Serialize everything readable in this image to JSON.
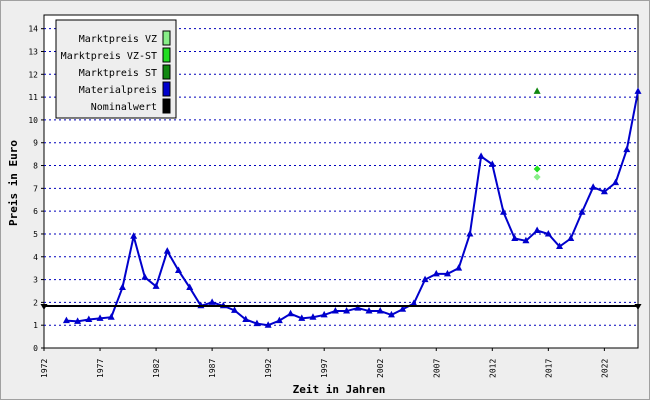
{
  "chart_data": {
    "type": "line",
    "xlabel": "Zeit in Jahren",
    "ylabel": "Preis in Euro",
    "xlim": [
      1972,
      2025
    ],
    "ylim": [
      0,
      14.6
    ],
    "x_ticks": [
      1972,
      1977,
      1982,
      1987,
      1992,
      1997,
      2002,
      2007,
      2012,
      2017,
      2022
    ],
    "y_ticks": [
      0,
      1,
      2,
      3,
      4,
      5,
      6,
      7,
      8,
      9,
      10,
      11,
      12,
      13,
      14
    ],
    "grid": "horizontal dotted",
    "legend_position": "top-left",
    "legend": [
      {
        "label": "Marktpreis VZ",
        "color": "#88ee88"
      },
      {
        "label": "Marktpreis VZ-ST",
        "color": "#22dd22"
      },
      {
        "label": "Marktpreis ST",
        "color": "#118811"
      },
      {
        "label": "Materialpreis",
        "color": "#0000cc"
      },
      {
        "label": "Nominalwert",
        "color": "#000000"
      }
    ],
    "series": [
      {
        "name": "Materialpreis",
        "color": "#0000cc",
        "x": [
          1974,
          1975,
          1976,
          1977,
          1978,
          1979,
          1980,
          1981,
          1982,
          1983,
          1984,
          1985,
          1986,
          1987,
          1988,
          1989,
          1990,
          1991,
          1992,
          1993,
          1994,
          1995,
          1996,
          1997,
          1998,
          1999,
          2000,
          2001,
          2002,
          2003,
          2004,
          2005,
          2006,
          2007,
          2008,
          2009,
          2010,
          2011,
          2012,
          2013,
          2014,
          2015,
          2016,
          2017,
          2018,
          2019,
          2020,
          2021,
          2022,
          2023,
          2024,
          2025
        ],
        "values": [
          1.2,
          1.17,
          1.25,
          1.3,
          1.35,
          2.65,
          4.9,
          3.1,
          2.7,
          4.25,
          3.4,
          2.65,
          1.85,
          2.0,
          1.85,
          1.65,
          1.25,
          1.07,
          1.0,
          1.2,
          1.5,
          1.3,
          1.35,
          1.45,
          1.62,
          1.62,
          1.75,
          1.62,
          1.62,
          1.45,
          1.7,
          1.95,
          3.0,
          3.25,
          3.25,
          3.5,
          5.0,
          8.4,
          8.05,
          5.95,
          4.8,
          4.7,
          5.15,
          5.0,
          4.45,
          4.8,
          5.95,
          7.05,
          6.85,
          7.25,
          8.7,
          11.25
        ]
      },
      {
        "name": "Nominalwert",
        "color": "#000000",
        "x": [
          1972,
          2025
        ],
        "values": [
          1.84,
          1.84
        ]
      },
      {
        "name": "Marktpreis ST",
        "color": "#118811",
        "x": [
          2016
        ],
        "values": [
          11.25
        ]
      },
      {
        "name": "Marktpreis VZ-ST",
        "color": "#22dd22",
        "x": [
          2016
        ],
        "values": [
          7.85
        ]
      },
      {
        "name": "Marktpreis VZ",
        "color": "#88ee88",
        "x": [
          2016
        ],
        "values": [
          7.5
        ]
      }
    ]
  }
}
